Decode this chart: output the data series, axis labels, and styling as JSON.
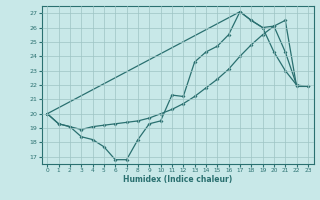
{
  "xlabel": "Humidex (Indice chaleur)",
  "bg_color": "#c8e8e8",
  "line_color": "#2a7070",
  "xlim": [
    -0.5,
    23.5
  ],
  "ylim": [
    16.5,
    27.5
  ],
  "xticks": [
    0,
    1,
    2,
    3,
    4,
    5,
    6,
    7,
    8,
    9,
    10,
    11,
    12,
    13,
    14,
    15,
    16,
    17,
    18,
    19,
    20,
    21,
    22,
    23
  ],
  "yticks": [
    17,
    18,
    19,
    20,
    21,
    22,
    23,
    24,
    25,
    26,
    27
  ],
  "grid_color": "#9dc4c4",
  "series1_x": [
    0,
    1,
    2,
    3,
    4,
    5,
    6,
    7,
    8,
    9,
    10,
    11,
    12,
    13,
    14,
    15,
    16,
    17,
    18,
    19,
    20,
    21,
    22
  ],
  "series1_y": [
    20.0,
    19.3,
    19.1,
    18.4,
    18.2,
    17.7,
    16.8,
    16.8,
    18.2,
    19.3,
    19.5,
    21.3,
    21.2,
    23.6,
    24.3,
    24.7,
    25.5,
    27.1,
    26.5,
    26.0,
    24.3,
    23.0,
    22.0
  ],
  "series2_x": [
    0,
    1,
    2,
    3,
    4,
    5,
    6,
    7,
    8,
    9,
    10,
    11,
    12,
    13,
    14,
    15,
    16,
    17,
    18,
    19,
    20,
    21,
    22,
    23
  ],
  "series2_y": [
    20.0,
    19.3,
    19.1,
    18.9,
    19.1,
    19.2,
    19.3,
    19.4,
    19.5,
    19.7,
    20.0,
    20.3,
    20.7,
    21.2,
    21.8,
    22.4,
    23.1,
    24.0,
    24.8,
    25.5,
    26.1,
    26.5,
    21.9,
    21.9
  ],
  "series3_x": [
    0,
    17,
    18,
    19,
    20,
    21,
    22,
    23
  ],
  "series3_y": [
    20.0,
    27.1,
    26.5,
    26.0,
    26.1,
    24.3,
    22.0,
    21.9
  ]
}
